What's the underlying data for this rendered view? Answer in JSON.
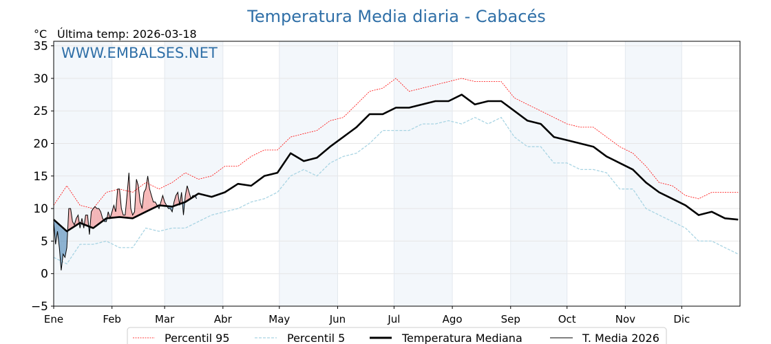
{
  "chart_data": {
    "type": "line",
    "title": "Temperatura Media diaria - Cabacés",
    "ylabel": "°C",
    "subtitle": "Última temp: 2026-03-18",
    "watermark": "WWW.EMBALSES.NET",
    "ylim": [
      -5,
      35.7
    ],
    "yticks": [
      -5,
      0,
      5,
      10,
      15,
      20,
      25,
      30,
      35
    ],
    "ytick_labels": [
      "−5",
      "0",
      "5",
      "10",
      "15",
      "20",
      "25",
      "30",
      "35"
    ],
    "xlim_days": [
      0,
      364
    ],
    "months": [
      "Ene",
      "Feb",
      "Mar",
      "Abr",
      "May",
      "Jun",
      "Jul",
      "Ago",
      "Sep",
      "Oct",
      "Nov",
      "Dic"
    ],
    "month_start_days": [
      0,
      31,
      59,
      90,
      120,
      151,
      181,
      212,
      243,
      273,
      304,
      334
    ],
    "grid": true,
    "legend_placement": "bottom-center",
    "legend": [
      "Percentil 95",
      "Percentil 5",
      "Temperatura Mediana",
      "T. Media 2026"
    ],
    "colors": {
      "title": "#2f6fa7",
      "p95": "#ff0000",
      "p5": "#a8d4e3",
      "median": "#000000",
      "above": "#f08080",
      "below": "#4682b4",
      "band": "#f3f7fb"
    },
    "weekly_day_step": 7,
    "series": [
      {
        "name": "Percentil 95",
        "values": [
          10.5,
          13.5,
          10.5,
          10,
          12.5,
          13,
          12.5,
          14,
          13,
          14,
          15.5,
          14.5,
          15,
          16.5,
          16.5,
          18,
          19,
          19,
          21,
          21.5,
          22,
          23.5,
          24,
          26,
          28,
          28.5,
          30,
          28,
          28.5,
          29,
          29.5,
          30,
          29.5,
          29.5,
          29.5,
          27,
          26,
          25,
          24,
          23,
          22.5,
          22.5,
          21,
          19.5,
          18.5,
          16.5,
          14,
          13.5,
          12,
          11.5,
          12.5,
          12.5,
          12.5
        ]
      },
      {
        "name": "Percentil 5",
        "values": [
          2.5,
          1.5,
          4.5,
          4.5,
          5,
          4,
          4,
          7,
          6.5,
          7,
          7,
          8,
          9,
          9.5,
          10,
          11,
          11.5,
          12.5,
          15,
          16,
          15,
          17,
          18,
          18.5,
          20,
          22,
          22,
          22,
          23,
          23,
          23.5,
          23,
          24,
          23,
          24,
          21,
          19.5,
          19.5,
          17,
          17,
          16,
          16,
          15.5,
          13,
          13,
          10,
          9,
          8,
          7,
          5,
          5,
          4,
          3
        ]
      },
      {
        "name": "Temperatura Mediana",
        "values": [
          8.3,
          6.5,
          7.8,
          7,
          8.5,
          8.7,
          8.5,
          9.5,
          10.5,
          10.3,
          11,
          12.3,
          11.8,
          12.5,
          13.8,
          13.5,
          15,
          15.5,
          18.5,
          17.3,
          17.8,
          19.5,
          21,
          22.5,
          24.5,
          24.5,
          25.5,
          25.5,
          26,
          26.5,
          26.5,
          27.5,
          26,
          26.5,
          26.5,
          25,
          23.5,
          23,
          21,
          20.5,
          20,
          19.5,
          18,
          17,
          16,
          14,
          12.5,
          11.5,
          10.5,
          9,
          9.5,
          8.5,
          8.3
        ]
      },
      {
        "name": "T. Media 2026",
        "daily": true,
        "values": [
          8,
          4.5,
          6.5,
          4,
          0.5,
          3,
          2.5,
          4,
          10,
          10,
          8,
          7.5,
          8.5,
          9,
          7,
          8.5,
          7,
          9,
          9,
          6,
          9.5,
          10,
          10.3,
          10,
          10,
          9.5,
          8.5,
          8,
          8,
          9.5,
          8.5,
          9.5,
          10.5,
          9.5,
          13,
          13,
          10,
          9,
          9,
          12,
          15.5,
          10,
          9,
          9.5,
          14.5,
          13.5,
          11,
          10,
          12.5,
          13,
          15,
          13,
          12,
          11,
          11,
          10.5,
          10,
          11,
          12,
          11,
          10.5,
          10,
          10,
          9.5,
          11,
          12,
          12.5,
          10.5,
          12.5,
          9,
          12,
          13.5,
          12.5,
          11.5,
          12,
          12,
          11.5
        ]
      }
    ]
  }
}
